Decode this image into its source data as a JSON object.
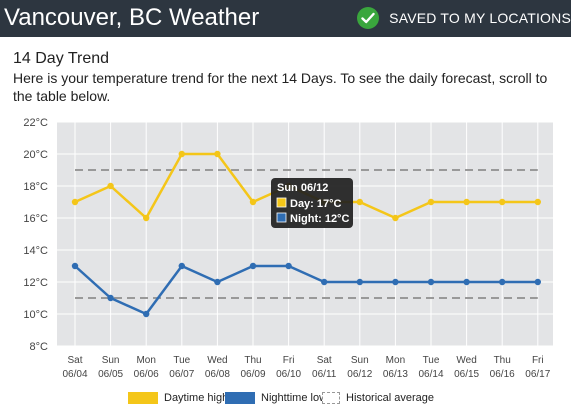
{
  "header": {
    "title": "Vancouver, BC Weather",
    "saved_label": "SAVED TO MY LOCATIONS"
  },
  "trend": {
    "heading": "14 Day Trend",
    "description": "Here is your temperature trend for the next 14 Days. To see the daily forecast, scroll to the table below."
  },
  "tooltip": {
    "date": "Sun 06/12",
    "day": "Day: 17°C",
    "night": "Night: 12°C"
  },
  "legend": {
    "day": "Daytime high",
    "night": "Nighttime low",
    "hist": "Historical average"
  },
  "colors": {
    "day": "#f4c619",
    "night": "#2f6db3",
    "plot_bg": "#e3e4e6",
    "header_bg": "#2d3640",
    "saved_check": "#3aa63d"
  },
  "chart_data": {
    "type": "line",
    "weekdays": [
      "Sat",
      "Sun",
      "Mon",
      "Tue",
      "Wed",
      "Thu",
      "Fri",
      "Sat",
      "Sun",
      "Mon",
      "Tue",
      "Wed",
      "Thu",
      "Fri"
    ],
    "dates": [
      "06/04",
      "06/05",
      "06/06",
      "06/07",
      "06/08",
      "06/09",
      "06/10",
      "06/11",
      "06/12",
      "06/13",
      "06/14",
      "06/15",
      "06/16",
      "06/17"
    ],
    "series": [
      {
        "name": "Daytime high",
        "values": [
          17,
          18,
          16,
          20,
          20,
          17,
          18,
          17,
          17,
          16,
          17,
          17,
          17,
          17
        ]
      },
      {
        "name": "Nighttime low",
        "values": [
          13,
          11,
          10,
          13,
          12,
          13,
          13,
          12,
          12,
          12,
          12,
          12,
          12,
          12
        ]
      }
    ],
    "historical_average": {
      "high": 19,
      "low": 11
    },
    "ylim": [
      8,
      22
    ],
    "yticks": [
      "8°C",
      "10°C",
      "12°C",
      "14°C",
      "16°C",
      "18°C",
      "20°C",
      "22°C"
    ],
    "grid": true,
    "legend_position": "bottom"
  }
}
